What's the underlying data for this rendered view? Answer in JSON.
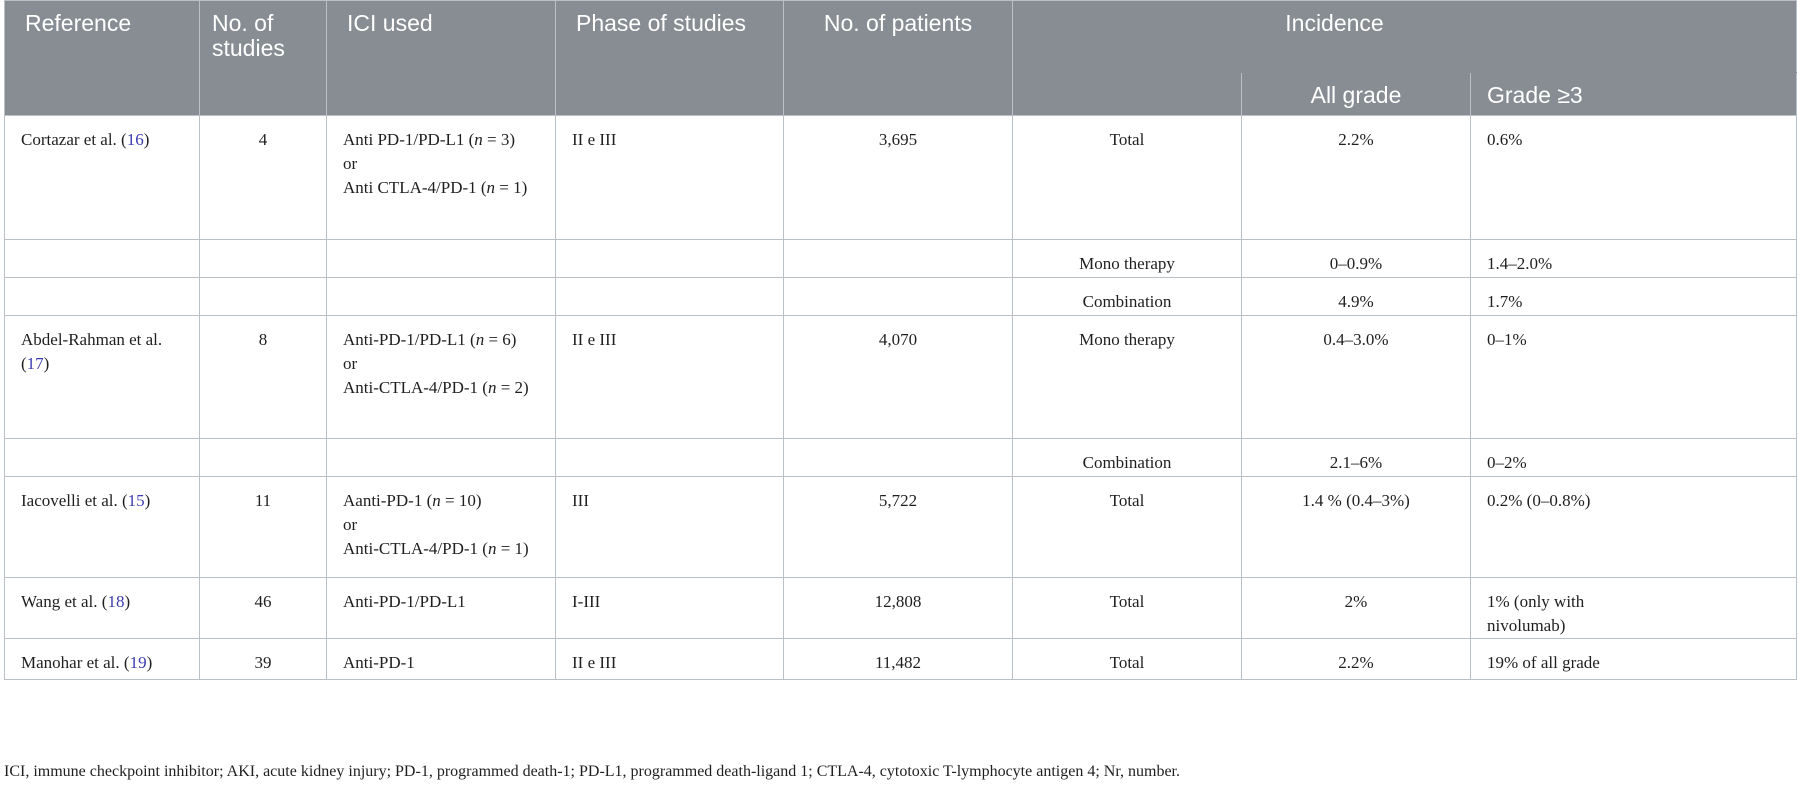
{
  "header": {
    "reference": "Reference",
    "no_studies": "No. of studies",
    "ici_used": "ICI used",
    "phase": "Phase of studies",
    "no_patients": "No. of patients",
    "incidence": "Incidence",
    "all_grade": "All grade",
    "grade3": "Grade ≥3"
  },
  "rows": {
    "r1": {
      "ref": "Cortazar et al. (",
      "refnum": "16",
      "ref_end": ")",
      "studies": "4",
      "ici_a": "Anti PD-1/PD-L1 (",
      "ici_a_n": "n",
      "ici_a_eq": " = 3)",
      "ici_or": "or",
      "ici_b": "Anti CTLA-4/PD-1 (",
      "ici_b_n": "n",
      "ici_b_eq": " = 1)",
      "phase": "II e III",
      "patients": "3,695",
      "type": "Total",
      "all": "2.2%",
      "g3": "0.6%"
    },
    "r2": {
      "type": "Mono therapy",
      "all": "0–0.9%",
      "g3": "1.4–2.0%"
    },
    "r3": {
      "type": "Combination",
      "all": "4.9%",
      "g3": "1.7%"
    },
    "r4": {
      "ref": "Abdel-Rahman et al. (",
      "refnum": "17",
      "ref_end": ")",
      "studies": "8",
      "ici_a": "Anti-PD-1/PD-L1 (",
      "ici_a_n": "n",
      "ici_a_eq": " = 6)",
      "ici_or": "or",
      "ici_b": "Anti-CTLA-4/PD-1 (",
      "ici_b_n": "n",
      "ici_b_eq": " = 2)",
      "phase": "II e III",
      "patients": "4,070",
      "type": "Mono therapy",
      "all": "0.4–3.0%",
      "g3": "0–1%"
    },
    "r5": {
      "type": "Combination",
      "all": "2.1–6%",
      "g3": "0–2%"
    },
    "r6": {
      "ref": "Iacovelli et al. (",
      "refnum": "15",
      "ref_end": ")",
      "studies": "11",
      "ici_a": "Aanti-PD-1 (",
      "ici_a_n": "n",
      "ici_a_eq": " = 10)",
      "ici_or": "or",
      "ici_b": "Anti-CTLA-4/PD-1 (",
      "ici_b_n": "n",
      "ici_b_eq": " = 1)",
      "phase": "III",
      "patients": "5,722",
      "type": "Total",
      "all": "1.4 % (0.4–3%)",
      "g3": "0.2% (0–0.8%)"
    },
    "r7": {
      "ref": "Wang et al. (",
      "refnum": "18",
      "ref_end": ")",
      "studies": "46",
      "ici": "Anti-PD-1/PD-L1",
      "phase": "I-III",
      "patients": "12,808",
      "type": "Total",
      "all": "2%",
      "g3": "1% (only with nivolumab)"
    },
    "r8": {
      "ref": "Manohar et al. (",
      "refnum": "19",
      "ref_end": ")",
      "studies": "39",
      "ici": "Anti-PD-1",
      "phase": "II e III",
      "patients": "11,482",
      "type": "Total",
      "all": "2.2%",
      "g3": "19% of all grade"
    }
  },
  "footnote": "ICI, immune checkpoint inhibitor; AKI, acute kidney injury; PD-1, programmed death-1; PD-L1, programmed death-ligand 1; CTLA-4, cytotoxic T-lymphocyte antigen 4; Nr, number."
}
